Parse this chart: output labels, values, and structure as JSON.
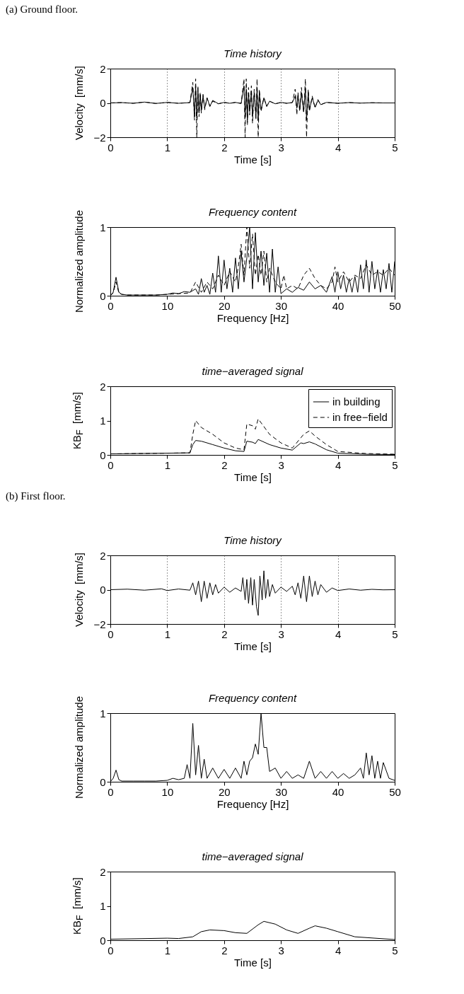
{
  "chart_data": [
    {
      "type": "line",
      "title": "Time history",
      "annotations": [
        "(a) Ground floor."
      ],
      "xlabel": "Time  [s]",
      "ylabel": "Velocity  [mm/s]",
      "xlim": [
        0,
        5
      ],
      "xticks": [
        0,
        1,
        2,
        3,
        4,
        5
      ],
      "ylim": [
        -2,
        2
      ],
      "yticks": [
        -2,
        0,
        2
      ],
      "grid": "x",
      "series": [
        {
          "color": "#000000",
          "line_style": "solid",
          "x": [
            0,
            0.2,
            0.4,
            0.6,
            0.8,
            1.0,
            1.2,
            1.4,
            1.45,
            1.48,
            1.5,
            1.52,
            1.54,
            1.56,
            1.58,
            1.6,
            1.63,
            1.66,
            1.7,
            1.75,
            1.8,
            1.9,
            2.0,
            2.1,
            2.2,
            2.3,
            2.35,
            2.37,
            2.39,
            2.41,
            2.43,
            2.45,
            2.48,
            2.5,
            2.53,
            2.56,
            2.58,
            2.6,
            2.62,
            2.65,
            2.7,
            2.75,
            2.8,
            2.9,
            3.0,
            3.1,
            3.2,
            3.25,
            3.28,
            3.3,
            3.33,
            3.36,
            3.4,
            3.43,
            3.45,
            3.48,
            3.5,
            3.55,
            3.6,
            3.65,
            3.7,
            3.8,
            4.0,
            4.2,
            4.4,
            4.6,
            4.8,
            5.0
          ],
          "values": [
            0,
            0.02,
            -0.02,
            0.05,
            -0.03,
            0.03,
            -0.02,
            0.02,
            0.9,
            -0.8,
            1.0,
            -0.9,
            0.7,
            -0.6,
            0.5,
            -0.4,
            0.4,
            -0.3,
            0.3,
            -0.2,
            0.15,
            -0.05,
            0.03,
            -0.02,
            0.03,
            -0.03,
            1.0,
            -0.9,
            0.8,
            -1.0,
            0.6,
            -0.5,
            0.7,
            -0.8,
            0.6,
            -0.7,
            0.9,
            -1.0,
            0.6,
            -0.4,
            0.3,
            -0.2,
            0.1,
            -0.05,
            0.03,
            -0.02,
            0.02,
            0.4,
            -0.3,
            0.5,
            -0.4,
            0.6,
            -0.5,
            0.9,
            -1.0,
            0.6,
            -0.4,
            0.3,
            -0.25,
            0.15,
            -0.1,
            0.03,
            -0.02,
            0.02,
            -0.01,
            0.01,
            0,
            0
          ]
        },
        {
          "color": "#000000",
          "line_style": "dashed",
          "x": [
            0,
            0.2,
            0.4,
            0.6,
            0.8,
            1.0,
            1.2,
            1.4,
            1.45,
            1.48,
            1.5,
            1.52,
            1.54,
            1.56,
            1.58,
            1.6,
            1.63,
            1.66,
            1.7,
            1.75,
            1.8,
            1.9,
            2.0,
            2.1,
            2.2,
            2.3,
            2.35,
            2.37,
            2.39,
            2.41,
            2.43,
            2.45,
            2.48,
            2.5,
            2.53,
            2.56,
            2.58,
            2.6,
            2.62,
            2.65,
            2.7,
            2.75,
            2.8,
            2.9,
            3.0,
            3.1,
            3.2,
            3.25,
            3.28,
            3.3,
            3.33,
            3.36,
            3.4,
            3.43,
            3.45,
            3.48,
            3.5,
            3.55,
            3.6,
            3.65,
            3.7,
            3.8,
            4.0,
            4.2,
            4.4,
            4.6,
            4.8,
            5.0
          ],
          "values": [
            0,
            0.02,
            -0.02,
            0.05,
            -0.03,
            0.03,
            -0.02,
            0.02,
            1.2,
            -1.0,
            1.4,
            -2.0,
            1.0,
            -0.8,
            0.6,
            -0.6,
            0.5,
            -0.4,
            0.3,
            -0.2,
            0.1,
            -0.05,
            0.03,
            -0.02,
            0.03,
            -0.03,
            1.4,
            -2.0,
            1.4,
            -1.3,
            0.9,
            -0.7,
            1.0,
            -1.2,
            0.8,
            -1.0,
            1.4,
            -2.0,
            0.8,
            -0.5,
            0.3,
            -0.2,
            0.1,
            -0.05,
            0.03,
            -0.02,
            0.02,
            0.8,
            -0.7,
            0.6,
            -0.5,
            0.9,
            -0.6,
            1.4,
            -2.0,
            0.8,
            -0.5,
            0.4,
            -0.3,
            0.2,
            -0.1,
            0.03,
            -0.02,
            0.02,
            -0.01,
            0.01,
            0,
            0
          ]
        }
      ]
    },
    {
      "type": "line",
      "title": "Frequency content",
      "xlabel": "Frequency  [Hz]",
      "ylabel": "Normalized amplitude",
      "xlim": [
        0,
        50
      ],
      "xticks": [
        0,
        10,
        20,
        30,
        40,
        50
      ],
      "ylim": [
        0,
        1
      ],
      "yticks": [
        0,
        1
      ],
      "series": [
        {
          "color": "#000000",
          "line_style": "solid",
          "x": [
            0,
            0.5,
            1,
            1.5,
            2,
            3,
            5,
            8,
            10,
            11,
            12,
            13,
            14,
            15,
            15.5,
            16,
            16.5,
            17,
            17.5,
            18,
            18.5,
            19,
            19.5,
            20,
            20.5,
            21,
            21.5,
            22,
            22.5,
            23,
            23.5,
            24,
            24.5,
            25,
            25.5,
            26,
            26.5,
            27,
            27.5,
            28,
            28.5,
            29,
            29.5,
            30,
            31,
            32,
            33,
            34,
            35,
            36,
            37,
            38,
            39,
            39.5,
            40,
            40.5,
            41,
            41.5,
            42,
            42.5,
            43,
            43.5,
            44,
            44.5,
            45,
            45.5,
            46,
            46.5,
            47,
            47.5,
            48,
            48.5,
            49,
            49.5,
            50
          ],
          "values": [
            0,
            0.05,
            0.27,
            0.05,
            0.02,
            0.01,
            0.01,
            0.01,
            0.02,
            0.04,
            0.03,
            0.06,
            0.05,
            0.1,
            0.02,
            0.25,
            0.05,
            0.15,
            0.02,
            0.33,
            0.05,
            0.58,
            0.05,
            0.52,
            0.1,
            0.4,
            0.05,
            0.55,
            0.1,
            0.65,
            0.2,
            0.55,
            1.0,
            0.1,
            0.92,
            0.2,
            0.65,
            0.15,
            0.62,
            0.05,
            0.68,
            0.05,
            0.42,
            0.03,
            0.1,
            0.05,
            0.12,
            0.08,
            0.2,
            0.1,
            0.15,
            0.05,
            0.28,
            0.05,
            0.35,
            0.1,
            0.3,
            0.05,
            0.25,
            0.05,
            0.28,
            0.05,
            0.45,
            0.1,
            0.52,
            0.05,
            0.5,
            0.1,
            0.38,
            0.05,
            0.38,
            0.1,
            0.47,
            0.05,
            0.5
          ]
        },
        {
          "color": "#000000",
          "line_style": "dashed",
          "x": [
            0,
            0.5,
            1,
            1.5,
            2,
            3,
            5,
            8,
            10,
            12,
            14,
            15,
            16,
            17,
            18,
            19,
            20,
            21,
            22,
            22.5,
            23,
            23.5,
            24,
            24.5,
            25,
            25.5,
            26,
            26.5,
            27,
            27.5,
            28,
            29,
            30,
            30.5,
            31,
            32,
            33,
            34,
            35,
            36,
            37,
            38,
            39,
            39.5,
            40,
            41,
            42,
            43,
            44,
            45,
            46,
            47,
            48,
            49,
            50
          ],
          "values": [
            0,
            0.04,
            0.2,
            0.04,
            0.02,
            0.01,
            0.01,
            0.01,
            0.02,
            0.03,
            0.04,
            0.2,
            0.05,
            0.2,
            0.1,
            0.3,
            0.15,
            0.35,
            0.2,
            0.42,
            0.75,
            0.3,
            1.0,
            0.4,
            0.9,
            0.3,
            0.6,
            0.3,
            0.65,
            0.2,
            0.4,
            0.2,
            0.1,
            0.3,
            0.1,
            0.15,
            0.1,
            0.3,
            0.4,
            0.25,
            0.15,
            0.1,
            0.2,
            0.42,
            0.2,
            0.35,
            0.2,
            0.3,
            0.25,
            0.45,
            0.3,
            0.35,
            0.3,
            0.4,
            0.3
          ]
        }
      ]
    },
    {
      "type": "line",
      "title": "time−averaged signal",
      "xlabel": "Time  [s]",
      "ylabel": "KB$_{F}$  [mm/s]",
      "xlim": [
        0,
        5
      ],
      "xticks": [
        0,
        1,
        2,
        3,
        4,
        5
      ],
      "ylim": [
        0,
        2
      ],
      "yticks": [
        0,
        1,
        2
      ],
      "legend": "top right",
      "series": [
        {
          "name": "in building",
          "color": "#000000",
          "line_style": "solid",
          "x": [
            0,
            0.5,
            1,
            1.4,
            1.45,
            1.5,
            1.6,
            1.8,
            2.0,
            2.2,
            2.35,
            2.4,
            2.5,
            2.55,
            2.6,
            2.8,
            3.0,
            3.2,
            3.35,
            3.4,
            3.5,
            3.6,
            3.8,
            4.0,
            4.5,
            5
          ],
          "values": [
            0.03,
            0.04,
            0.05,
            0.06,
            0.3,
            0.42,
            0.4,
            0.3,
            0.2,
            0.12,
            0.1,
            0.4,
            0.37,
            0.33,
            0.45,
            0.3,
            0.2,
            0.14,
            0.35,
            0.33,
            0.38,
            0.32,
            0.15,
            0.05,
            0.02,
            0.01
          ]
        },
        {
          "name": "in free−field",
          "color": "#000000",
          "line_style": "dashed",
          "x": [
            0,
            0.5,
            1,
            1.4,
            1.45,
            1.5,
            1.6,
            1.8,
            2.0,
            2.2,
            2.35,
            2.4,
            2.5,
            2.55,
            2.6,
            2.8,
            3.0,
            3.2,
            3.35,
            3.4,
            3.5,
            3.6,
            3.8,
            4.0,
            4.5,
            5
          ],
          "values": [
            0.03,
            0.04,
            0.05,
            0.06,
            0.6,
            1.0,
            0.8,
            0.6,
            0.35,
            0.2,
            0.15,
            0.9,
            0.85,
            0.75,
            1.05,
            0.6,
            0.35,
            0.2,
            0.5,
            0.6,
            0.7,
            0.55,
            0.3,
            0.1,
            0.04,
            0.02
          ]
        }
      ]
    },
    {
      "type": "line",
      "title": "Time history",
      "annotations": [
        "(b) First floor."
      ],
      "xlabel": "Time  [s]",
      "ylabel": "Velocity  [mm/s]",
      "xlim": [
        0,
        5
      ],
      "xticks": [
        0,
        1,
        2,
        3,
        4,
        5
      ],
      "ylim": [
        -2,
        2
      ],
      "yticks": [
        -2,
        0,
        2
      ],
      "grid": "x",
      "series": [
        {
          "color": "#000000",
          "line_style": "solid",
          "x": [
            0,
            0.3,
            0.6,
            0.9,
            1.0,
            1.2,
            1.4,
            1.45,
            1.5,
            1.55,
            1.6,
            1.65,
            1.7,
            1.75,
            1.8,
            1.85,
            1.9,
            2.0,
            2.1,
            2.2,
            2.3,
            2.33,
            2.37,
            2.4,
            2.43,
            2.47,
            2.5,
            2.53,
            2.57,
            2.6,
            2.63,
            2.67,
            2.7,
            2.73,
            2.77,
            2.8,
            2.85,
            2.9,
            3.0,
            3.1,
            3.2,
            3.25,
            3.3,
            3.35,
            3.4,
            3.45,
            3.5,
            3.55,
            3.6,
            3.65,
            3.7,
            3.8,
            3.9,
            4.0,
            4.2,
            4.4,
            4.6,
            4.8,
            5
          ],
          "values": [
            0,
            0.03,
            -0.03,
            0.05,
            -0.05,
            0.04,
            -0.03,
            0.4,
            -0.3,
            0.5,
            -0.7,
            0.5,
            -0.5,
            0.4,
            -0.3,
            0.3,
            -0.2,
            0.15,
            -0.15,
            0.1,
            -0.1,
            0.7,
            -0.6,
            0.6,
            -0.8,
            0.7,
            -0.9,
            0.6,
            -1.0,
            -1.5,
            0.8,
            -0.6,
            1.1,
            -0.5,
            0.6,
            -0.4,
            0.3,
            -0.2,
            0.15,
            -0.1,
            0.2,
            -0.3,
            0.4,
            -0.5,
            0.8,
            -0.7,
            0.8,
            -0.4,
            0.5,
            -0.3,
            0.3,
            -0.15,
            0.1,
            -0.05,
            0.04,
            -0.03,
            0.02,
            -0.01,
            0
          ]
        }
      ]
    },
    {
      "type": "line",
      "title": "Frequency content",
      "xlabel": "Frequency  [Hz]",
      "ylabel": "Normalized amplitude",
      "xlim": [
        0,
        50
      ],
      "xticks": [
        0,
        10,
        20,
        30,
        40,
        50
      ],
      "ylim": [
        0,
        1
      ],
      "yticks": [
        0,
        1
      ],
      "series": [
        {
          "color": "#000000",
          "line_style": "solid",
          "x": [
            0,
            0.5,
            1,
            1.5,
            2,
            4,
            6,
            8,
            10,
            11,
            12,
            13,
            13.5,
            14,
            14.5,
            15,
            15.5,
            16,
            16.5,
            17,
            18,
            19,
            20,
            21,
            22,
            23,
            23.5,
            24,
            24.5,
            25,
            25.5,
            26,
            26.5,
            27,
            27.5,
            28,
            29,
            30,
            31,
            32,
            33,
            34,
            35,
            36,
            37,
            38,
            39,
            40,
            41,
            42,
            43,
            44,
            44.5,
            45,
            45.5,
            46,
            46.5,
            47,
            47.5,
            48,
            49,
            50
          ],
          "values": [
            0,
            0.05,
            0.17,
            0.03,
            0.01,
            0.01,
            0.01,
            0.01,
            0.02,
            0.05,
            0.03,
            0.05,
            0.25,
            0.05,
            0.85,
            0.1,
            0.53,
            0.05,
            0.33,
            0.05,
            0.2,
            0.05,
            0.18,
            0.05,
            0.2,
            0.05,
            0.3,
            0.1,
            0.3,
            0.35,
            0.55,
            0.4,
            1.0,
            0.5,
            0.5,
            0.15,
            0.2,
            0.05,
            0.15,
            0.05,
            0.1,
            0.05,
            0.3,
            0.05,
            0.15,
            0.05,
            0.15,
            0.05,
            0.12,
            0.05,
            0.1,
            0.2,
            0.05,
            0.42,
            0.1,
            0.38,
            0.05,
            0.3,
            0.05,
            0.28,
            0.05,
            0.02
          ]
        }
      ]
    },
    {
      "type": "line",
      "title": "time−averaged signal",
      "xlabel": "Time  [s]",
      "ylabel": "KB$_{F}$  [mm/s]",
      "xlim": [
        0,
        5
      ],
      "xticks": [
        0,
        1,
        2,
        3,
        4,
        5
      ],
      "ylim": [
        0,
        2
      ],
      "yticks": [
        0,
        1,
        2
      ],
      "series": [
        {
          "color": "#000000",
          "line_style": "solid",
          "x": [
            0,
            1,
            1.2,
            1.45,
            1.6,
            1.75,
            2.0,
            2.2,
            2.4,
            2.6,
            2.7,
            2.9,
            3.1,
            3.3,
            3.5,
            3.6,
            3.8,
            4.0,
            4.3,
            5
          ],
          "values": [
            0.03,
            0.06,
            0.05,
            0.1,
            0.25,
            0.3,
            0.28,
            0.22,
            0.2,
            0.45,
            0.55,
            0.47,
            0.3,
            0.2,
            0.35,
            0.42,
            0.35,
            0.25,
            0.1,
            0.02
          ]
        }
      ]
    }
  ]
}
